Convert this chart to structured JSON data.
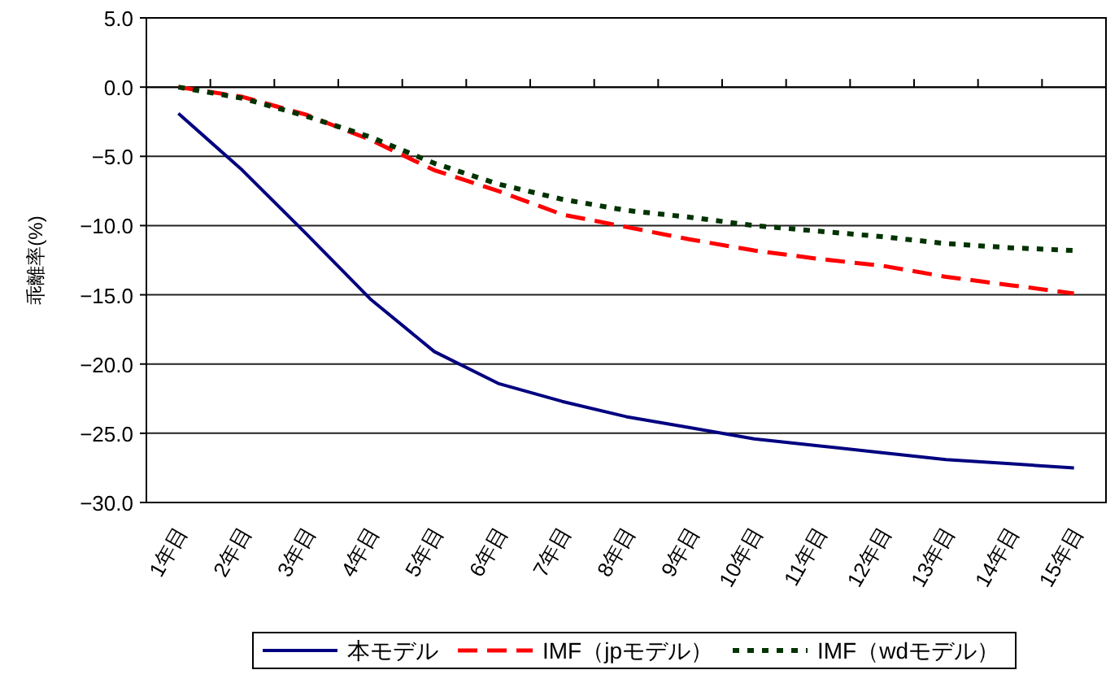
{
  "chart_data": {
    "type": "line",
    "ylabel": "乖離率(%)",
    "categories": [
      "1年目",
      "2年目",
      "3年目",
      "4年目",
      "5年目",
      "6年目",
      "7年目",
      "8年目",
      "9年目",
      "10年目",
      "11年目",
      "12年目",
      "13年目",
      "14年目",
      "15年目"
    ],
    "series": [
      {
        "name": "本モデル",
        "color": "#000080",
        "line_style": "solid",
        "values": [
          -1.9,
          -6.0,
          -10.6,
          -15.3,
          -19.1,
          -21.4,
          -22.7,
          -23.8,
          -24.6,
          -25.4,
          -25.9,
          -26.4,
          -26.9,
          -27.2,
          -27.5
        ]
      },
      {
        "name": "IMF（jpモデル）",
        "color": "#ff0000",
        "line_style": "dashed",
        "values": [
          0,
          -0.7,
          -2.0,
          -3.8,
          -6.0,
          -7.5,
          -9.2,
          -10.1,
          -11.0,
          -11.8,
          -12.4,
          -12.9,
          -13.7,
          -14.3,
          -14.9
        ]
      },
      {
        "name": "IMF（wdモデル）",
        "color": "#003300",
        "line_style": "dotted",
        "values": [
          0,
          -0.8,
          -2.1,
          -3.6,
          -5.5,
          -7.0,
          -8.1,
          -8.9,
          -9.4,
          -10.0,
          -10.4,
          -10.8,
          -11.3,
          -11.6,
          -11.8
        ]
      }
    ],
    "ylim": [
      -30,
      5
    ],
    "yticks": [
      {
        "value": 5,
        "label": "5.0"
      },
      {
        "value": 0,
        "label": "0.0"
      },
      {
        "value": -5,
        "label": "−5.0"
      },
      {
        "value": -10,
        "label": "−10.0"
      },
      {
        "value": -15,
        "label": "−15.0"
      },
      {
        "value": -20,
        "label": "−20.0"
      },
      {
        "value": -25,
        "label": "−25.0"
      },
      {
        "value": -30,
        "label": "−30.0"
      }
    ],
    "grid": "y",
    "legend": "bottom"
  }
}
